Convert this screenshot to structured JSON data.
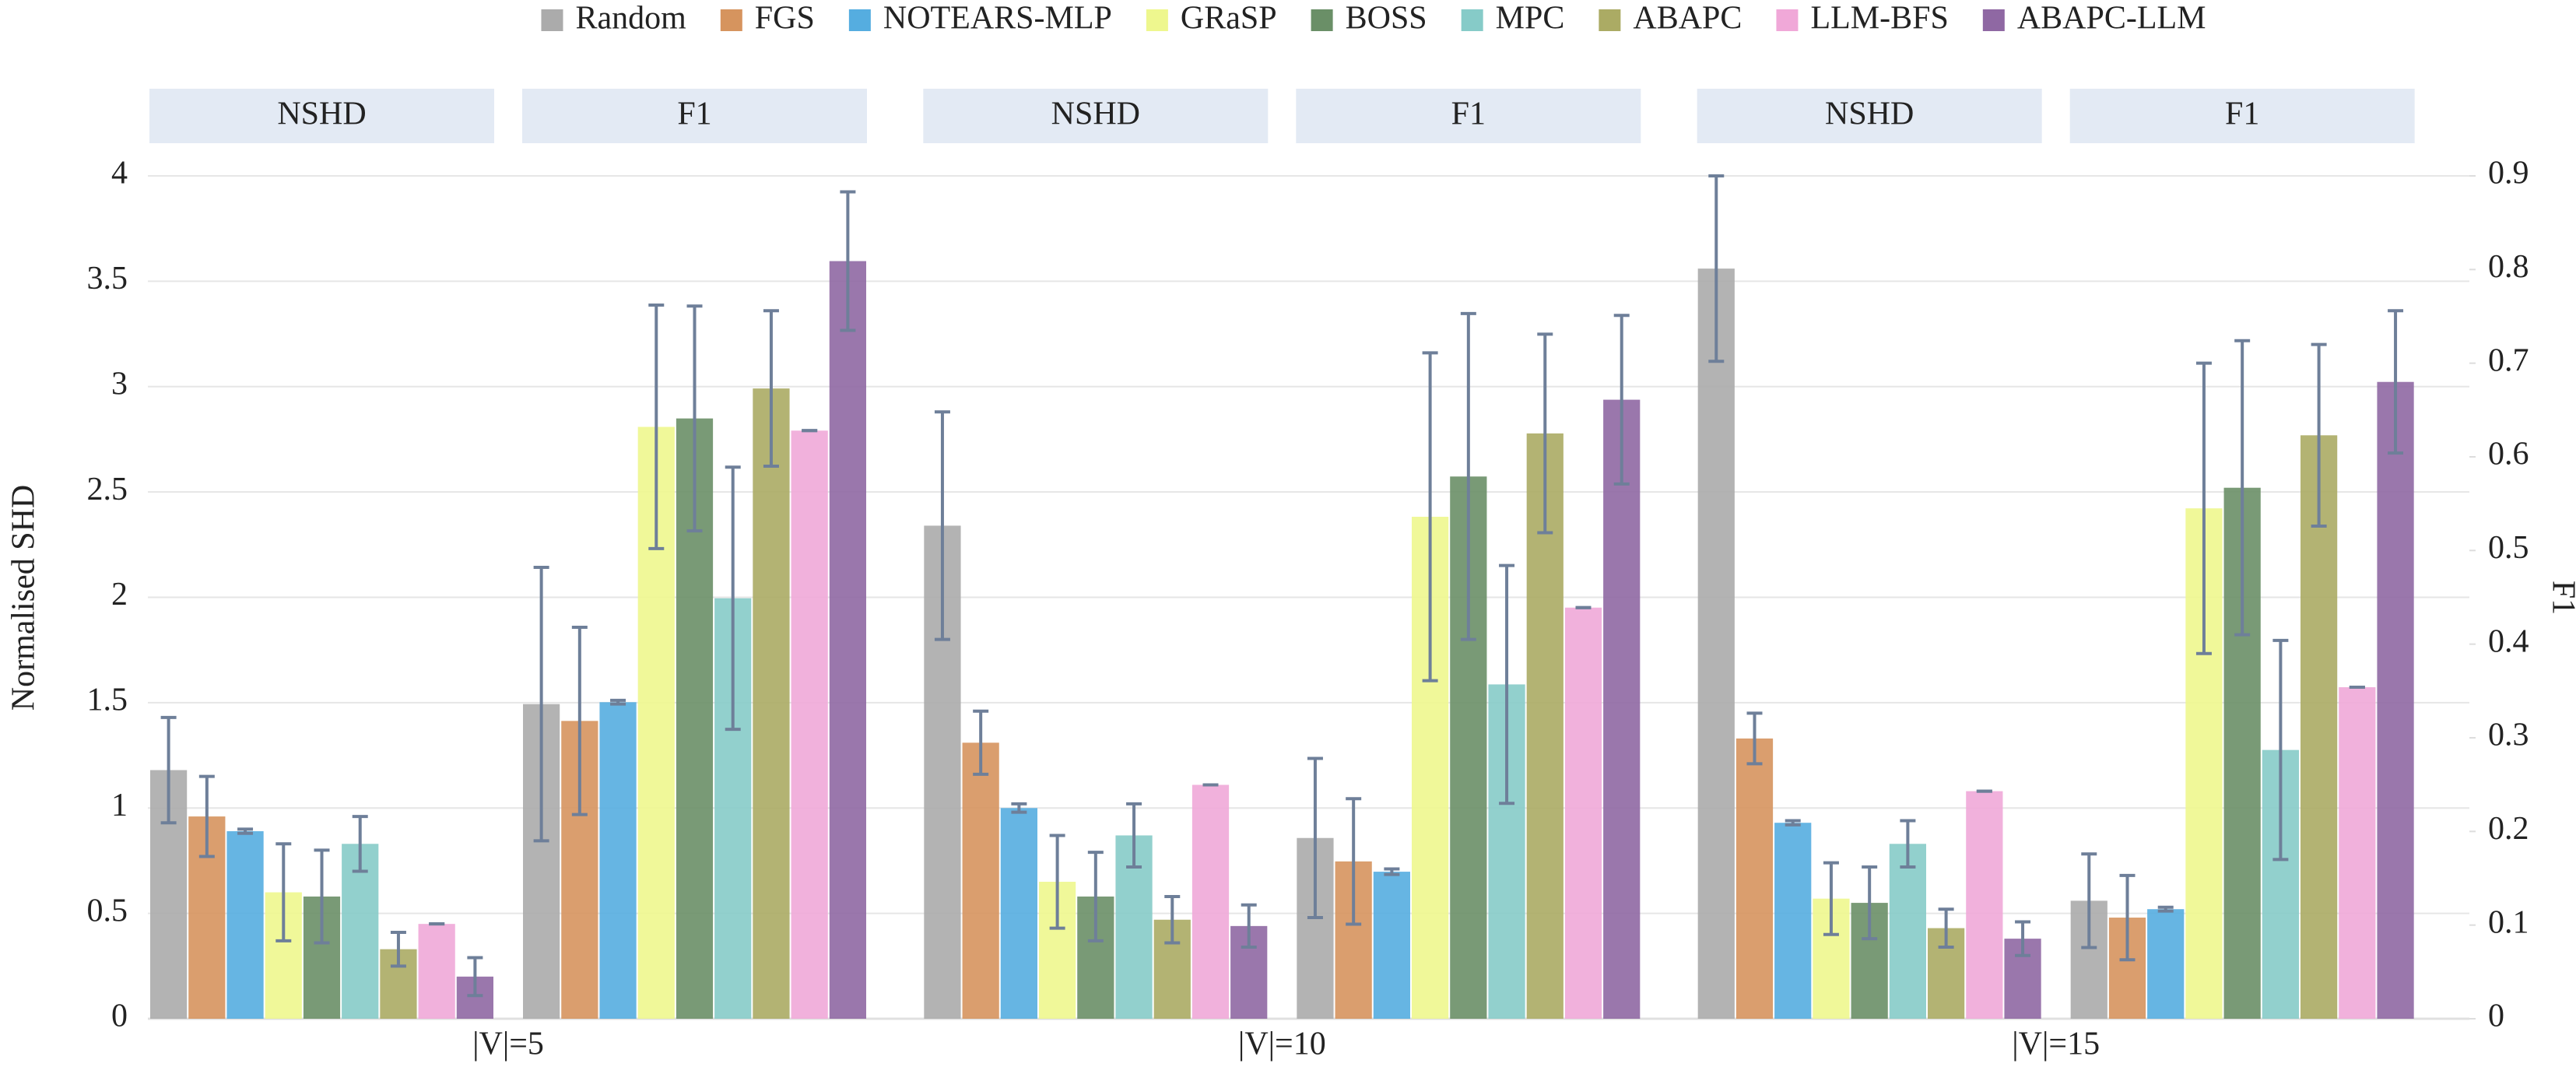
{
  "chart_data": {
    "type": "bar",
    "ylabel": "Normalised SHD",
    "y2label": "F1",
    "categories": [
      "|V|=5",
      "|V|=10",
      "|V|=15"
    ],
    "panels": [
      "NSHD",
      "F1"
    ],
    "ylim": [
      0,
      4
    ],
    "yticks": [
      0,
      0.5,
      1,
      1.5,
      2,
      2.5,
      3,
      3.5,
      4
    ],
    "y2lim": [
      0,
      0.9
    ],
    "y2ticks": [
      0,
      0.1,
      0.2,
      0.3,
      0.4,
      0.5,
      0.6,
      0.7,
      0.8,
      0.9
    ],
    "grid": true,
    "error_color": "#6e7f99",
    "series": [
      {
        "name": "Random",
        "color": "#ababab",
        "values": [
          1.18,
          2.34,
          3.56
        ],
        "errors": [
          0.25,
          0.54,
          0.44
        ],
        "y2_values": [
          0.336,
          0.193,
          0.126
        ],
        "y2_errors": [
          0.146,
          0.085,
          0.05
        ]
      },
      {
        "name": "FGS",
        "color": "#d6945e",
        "values": [
          0.96,
          1.31,
          1.33
        ],
        "errors": [
          0.19,
          0.15,
          0.12
        ],
        "y2_values": [
          0.318,
          0.168,
          0.108
        ],
        "y2_errors": [
          0.1,
          0.067,
          0.045
        ]
      },
      {
        "name": "NOTEARS-MLP",
        "color": "#55ade0",
        "values": [
          0.89,
          1.0,
          0.93
        ],
        "errors": [
          0.01,
          0.02,
          0.01
        ],
        "y2_values": [
          0.338,
          0.157,
          0.117
        ],
        "y2_errors": [
          0.002,
          0.003,
          0.002
        ]
      },
      {
        "name": "GRaSP",
        "color": "#eef78e",
        "values": [
          0.6,
          0.65,
          0.57
        ],
        "errors": [
          0.23,
          0.22,
          0.17
        ],
        "y2_values": [
          0.632,
          0.536,
          0.545
        ],
        "y2_errors": [
          0.13,
          0.175,
          0.155
        ]
      },
      {
        "name": "BOSS",
        "color": "#6a8f67",
        "values": [
          0.58,
          0.58,
          0.55
        ],
        "errors": [
          0.22,
          0.21,
          0.17
        ],
        "y2_values": [
          0.641,
          0.579,
          0.567
        ],
        "y2_errors": [
          0.12,
          0.174,
          0.157
        ]
      },
      {
        "name": "MPC",
        "color": "#86cbc8",
        "values": [
          0.83,
          0.87,
          0.83
        ],
        "errors": [
          0.13,
          0.15,
          0.11
        ],
        "y2_values": [
          0.449,
          0.357,
          0.287
        ],
        "y2_errors": [
          0.14,
          0.127,
          0.117
        ]
      },
      {
        "name": "ABAPC",
        "color": "#abab64",
        "values": [
          0.33,
          0.47,
          0.43
        ],
        "errors": [
          0.08,
          0.11,
          0.09
        ],
        "y2_values": [
          0.673,
          0.625,
          0.623
        ],
        "y2_errors": [
          0.083,
          0.106,
          0.097
        ]
      },
      {
        "name": "LLM-BFS",
        "color": "#f0a8d8",
        "values": [
          0.45,
          1.11,
          1.08
        ],
        "errors": [
          0,
          0,
          0
        ],
        "y2_values": [
          0.628,
          0.439,
          0.354
        ],
        "y2_errors": [
          0,
          0,
          0
        ]
      },
      {
        "name": "ABAPC-LLM",
        "color": "#8f68a3",
        "values": [
          0.2,
          0.44,
          0.38
        ],
        "errors": [
          0.09,
          0.1,
          0.08
        ],
        "y2_values": [
          0.809,
          0.661,
          0.68
        ],
        "y2_errors": [
          0.074,
          0.09,
          0.076
        ]
      }
    ]
  }
}
